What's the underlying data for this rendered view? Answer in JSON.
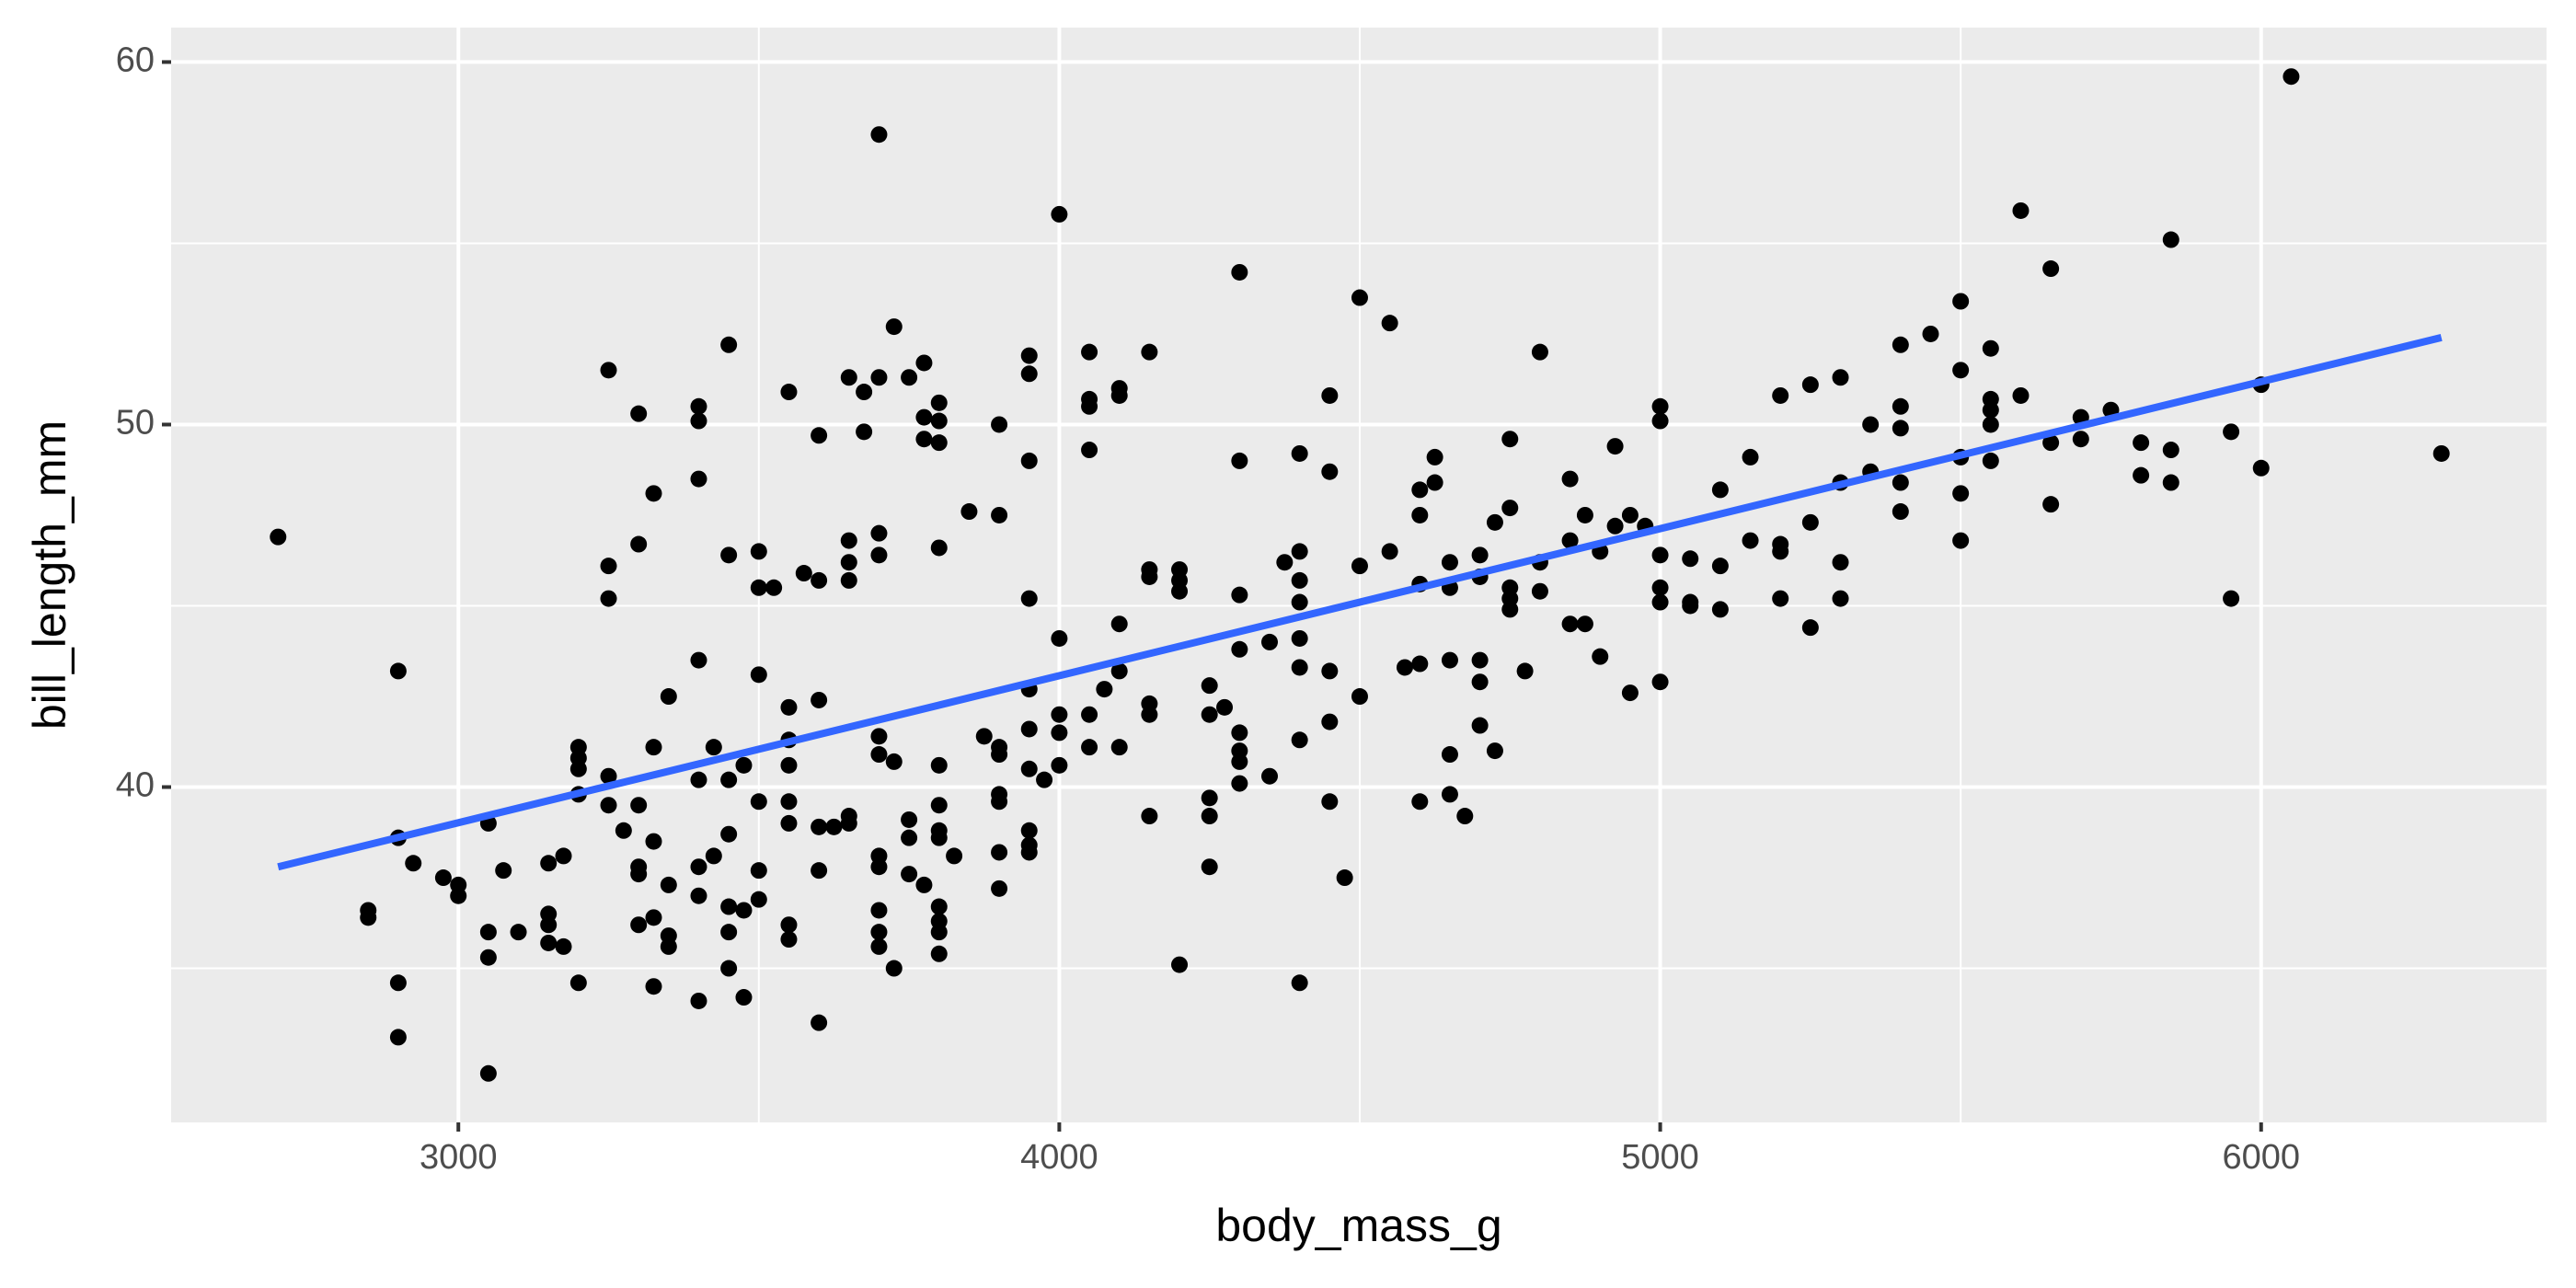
{
  "chart_data": {
    "type": "scatter",
    "x_label": "body_mass_g",
    "y_label": "bill_length_mm",
    "xlim": [
      2522,
      6475
    ],
    "ylim": [
      30.75,
      60.95
    ],
    "xticks": [
      3000,
      4000,
      5000,
      6000
    ],
    "yticks": [
      40,
      50,
      60
    ],
    "grid": true,
    "color": "#000000",
    "x": [
      2700,
      2850,
      2850,
      2900,
      2900,
      2900,
      2900,
      2925,
      2975,
      3000,
      3000,
      3050,
      3050,
      3050,
      3050,
      3075,
      3100,
      3150,
      3150,
      3150,
      3150,
      3175,
      3175,
      3200,
      3200,
      3200,
      3200,
      3200,
      3250,
      3250,
      3250,
      3250,
      3250,
      3275,
      3300,
      3300,
      3300,
      3300,
      3300,
      3300,
      3325,
      3325,
      3325,
      3325,
      3325,
      3350,
      3350,
      3350,
      3350,
      3400,
      3400,
      3400,
      3400,
      3400,
      3400,
      3400,
      3400,
      3425,
      3425,
      3450,
      3450,
      3450,
      3450,
      3450,
      3450,
      3450,
      3475,
      3475,
      3475,
      3500,
      3500,
      3500,
      3500,
      3500,
      3500,
      3525,
      3550,
      3550,
      3550,
      3550,
      3550,
      3550,
      3550,
      3550,
      3575,
      3600,
      3600,
      3600,
      3600,
      3600,
      3600,
      3625,
      3650,
      3650,
      3650,
      3650,
      3650,
      3650,
      3675,
      3675,
      3700,
      3700,
      3700,
      3700,
      3700,
      3700,
      3700,
      3700,
      3700,
      3700,
      3700,
      3725,
      3725,
      3725,
      3750,
      3750,
      3750,
      3750,
      3775,
      3775,
      3775,
      3775,
      3800,
      3800,
      3800,
      3800,
      3800,
      3800,
      3800,
      3800,
      3800,
      3800,
      3800,
      3800,
      3825,
      3850,
      3875,
      3900,
      3900,
      3900,
      3900,
      3900,
      3900,
      3900,
      3900,
      3950,
      3950,
      3950,
      3950,
      3950,
      3950,
      3950,
      3950,
      3950,
      3950,
      3975,
      4000,
      4000,
      4000,
      4000,
      4000,
      4050,
      4050,
      4050,
      4050,
      4050,
      4050,
      4075,
      4100,
      4100,
      4100,
      4100,
      4100,
      4150,
      4150,
      4150,
      4150,
      4150,
      4150,
      4200,
      4200,
      4200,
      4200,
      4250,
      4250,
      4250,
      4250,
      4250,
      4275,
      4300,
      4300,
      4300,
      4300,
      4300,
      4300,
      4300,
      4300,
      4350,
      4350,
      4375,
      4400,
      4400,
      4400,
      4400,
      4400,
      4400,
      4400,
      4400,
      4450,
      4450,
      4450,
      4450,
      4450,
      4475,
      4500,
      4500,
      4500,
      4550,
      4550,
      4575,
      4600,
      4600,
      4600,
      4600,
      4600,
      4625,
      4625,
      4650,
      4650,
      4650,
      4650,
      4650,
      4675,
      4700,
      4700,
      4700,
      4700,
      4700,
      4725,
      4725,
      4750,
      4750,
      4750,
      4750,
      4750,
      4775,
      4800,
      4800,
      4800,
      4850,
      4850,
      4850,
      4875,
      4875,
      4900,
      4900,
      4925,
      4925,
      4950,
      4950,
      4975,
      5000,
      5000,
      5000,
      5000,
      5000,
      5000,
      5050,
      5050,
      5050,
      5100,
      5100,
      5100,
      5150,
      5150,
      5200,
      5200,
      5200,
      5200,
      5250,
      5250,
      5250,
      5300,
      5300,
      5300,
      5300,
      5350,
      5350,
      5400,
      5400,
      5400,
      5400,
      5400,
      5450,
      5500,
      5500,
      5500,
      5500,
      5500,
      5550,
      5550,
      5550,
      5550,
      5550,
      5600,
      5600,
      5650,
      5650,
      5650,
      5700,
      5700,
      5750,
      5800,
      5800,
      5850,
      5850,
      5850,
      5950,
      5950,
      6000,
      6000,
      6050,
      6300
    ],
    "values": [
      46.9,
      36.6,
      36.4,
      43.2,
      38.6,
      34.6,
      33.1,
      37.9,
      37.5,
      37.3,
      37.0,
      36.0,
      35.3,
      39.0,
      32.1,
      37.7,
      36.0,
      36.5,
      36.2,
      35.7,
      37.9,
      38.1,
      35.6,
      41.1,
      40.8,
      40.5,
      39.8,
      34.6,
      51.5,
      46.1,
      45.2,
      40.3,
      39.5,
      38.8,
      50.3,
      46.7,
      39.5,
      37.8,
      37.6,
      36.2,
      48.1,
      41.1,
      38.5,
      36.4,
      34.5,
      42.5,
      37.3,
      35.9,
      35.6,
      50.5,
      50.1,
      48.5,
      43.5,
      40.2,
      37.8,
      37.0,
      34.1,
      41.1,
      38.1,
      52.2,
      46.4,
      40.2,
      38.7,
      36.7,
      36.0,
      35.0,
      40.6,
      36.6,
      34.2,
      46.5,
      45.5,
      43.1,
      39.6,
      37.7,
      36.9,
      45.5,
      50.9,
      42.2,
      41.3,
      40.6,
      39.6,
      39.0,
      36.2,
      35.8,
      45.9,
      49.7,
      45.7,
      42.4,
      38.9,
      37.7,
      33.5,
      38.9,
      51.3,
      46.8,
      46.2,
      45.7,
      39.2,
      39.0,
      50.9,
      49.8,
      58.0,
      51.3,
      47.0,
      46.4,
      41.4,
      40.9,
      38.1,
      37.8,
      36.6,
      36.0,
      35.6,
      52.7,
      40.7,
      35.0,
      51.3,
      39.1,
      38.6,
      37.6,
      51.7,
      50.2,
      49.6,
      37.3,
      50.6,
      50.1,
      49.5,
      46.6,
      40.6,
      39.5,
      38.8,
      38.6,
      36.7,
      36.3,
      36.0,
      35.4,
      38.1,
      47.6,
      41.4,
      50.0,
      47.5,
      41.1,
      40.9,
      39.8,
      39.6,
      38.2,
      37.2,
      51.9,
      51.4,
      49.0,
      45.2,
      42.7,
      41.6,
      40.5,
      38.8,
      38.4,
      38.2,
      40.2,
      55.8,
      44.1,
      42.0,
      41.5,
      40.6,
      52.0,
      50.7,
      50.5,
      49.3,
      42.0,
      41.1,
      42.7,
      51.0,
      50.8,
      44.5,
      43.2,
      41.1,
      52.0,
      46.0,
      45.8,
      42.3,
      42.0,
      39.2,
      46.0,
      45.7,
      45.4,
      35.1,
      42.8,
      42.0,
      39.7,
      39.2,
      37.8,
      42.2,
      54.2,
      49.0,
      45.3,
      43.8,
      41.5,
      41.0,
      40.7,
      40.1,
      44.0,
      40.3,
      46.2,
      49.2,
      46.5,
      45.7,
      45.1,
      44.1,
      43.3,
      41.3,
      34.6,
      50.8,
      48.7,
      43.2,
      41.8,
      39.6,
      37.5,
      53.5,
      46.1,
      42.5,
      52.8,
      46.5,
      43.3,
      48.2,
      47.5,
      45.6,
      43.4,
      39.6,
      49.1,
      48.4,
      46.2,
      45.5,
      43.5,
      40.9,
      39.8,
      39.2,
      46.4,
      45.8,
      43.5,
      42.9,
      41.7,
      47.3,
      41.0,
      49.6,
      47.7,
      45.5,
      45.2,
      44.9,
      43.2,
      52.0,
      46.2,
      45.4,
      48.5,
      46.8,
      44.5,
      47.5,
      44.5,
      46.5,
      43.6,
      49.4,
      47.2,
      47.5,
      42.6,
      47.2,
      50.5,
      50.1,
      46.4,
      45.5,
      45.1,
      42.9,
      46.3,
      45.1,
      45.0,
      48.2,
      46.1,
      44.9,
      49.1,
      46.8,
      50.8,
      46.7,
      46.5,
      45.2,
      51.1,
      47.3,
      44.4,
      51.3,
      48.4,
      46.2,
      45.2,
      50.0,
      48.7,
      52.2,
      50.5,
      49.9,
      48.4,
      47.6,
      52.5,
      53.4,
      51.5,
      49.1,
      48.1,
      46.8,
      52.1,
      50.7,
      50.4,
      50.0,
      49.0,
      55.9,
      50.8,
      54.3,
      49.5,
      47.8,
      50.2,
      49.6,
      50.4,
      49.5,
      48.6,
      55.1,
      49.3,
      48.4,
      49.8,
      45.2,
      51.1,
      48.8,
      59.6,
      49.2
    ],
    "fit": {
      "type": "line",
      "color": "#3366ff",
      "x": [
        2700,
        6300
      ],
      "values": [
        37.8,
        52.4
      ]
    }
  }
}
